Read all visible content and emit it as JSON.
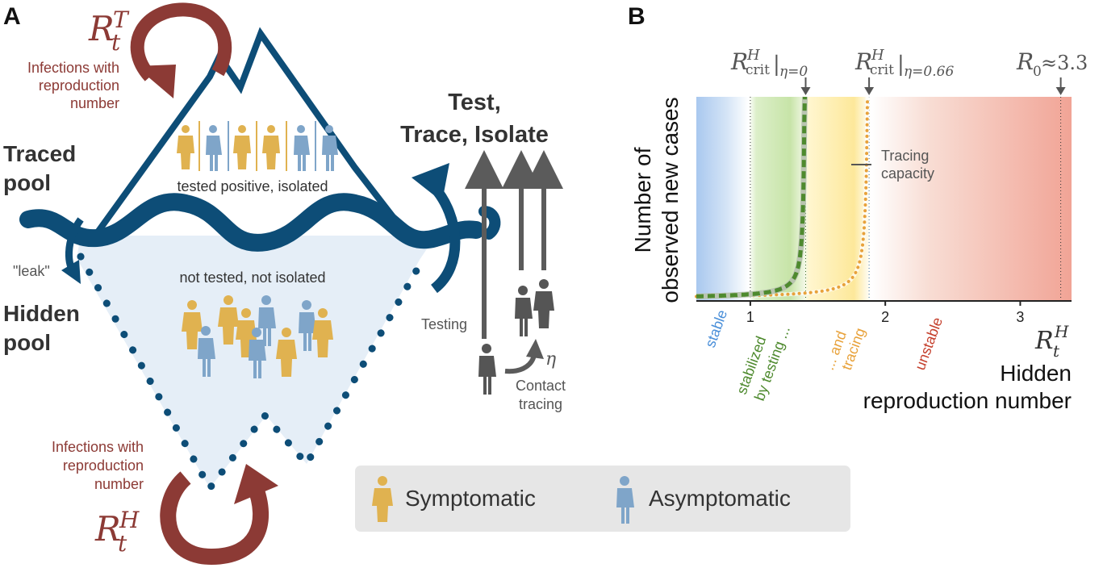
{
  "colors": {
    "navy": "#0d4d77",
    "brown": "#8c3a35",
    "grey": "#5b5b5b",
    "symptomatic": "#e0b250",
    "asymptomatic": "#7fa5c9",
    "pool_fill": "#e5eef7",
    "green": "#4e8a2e",
    "orange": "#e8a23b",
    "stable_blue": "#4a8fd9",
    "unstable_red": "#c5402d"
  },
  "panelA": {
    "label": "A",
    "traced_pool": [
      "Traced",
      "pool"
    ],
    "hidden_pool": [
      "Hidden",
      "pool"
    ],
    "rt_t": {
      "base": "R",
      "sub": "t",
      "sup": "T"
    },
    "rt_h": {
      "base": "R",
      "sub": "t",
      "sup": "H"
    },
    "infections_top": [
      "Infections with",
      "reproduction",
      "number"
    ],
    "infections_bottom": [
      "Infections with",
      "reproduction",
      "number"
    ],
    "tested_label": "tested positive, isolated",
    "not_tested_label": "not tested, not isolated",
    "leak": "\"leak\"",
    "tti": [
      "Test,",
      "Trace, Isolate"
    ],
    "testing": "Testing",
    "contact_tracing": [
      "Contact",
      "tracing"
    ],
    "eta": "η",
    "legend": {
      "symptomatic": "Symptomatic",
      "asymptomatic": "Asymptomatic"
    }
  },
  "panelB": {
    "label": "B",
    "ylabel": [
      "Number of",
      "observed new cases"
    ],
    "xlabel": [
      "Hidden",
      "reproduction number"
    ],
    "x_symbol": {
      "base": "R",
      "sub": "t",
      "sup": "H"
    },
    "crit_base": "R",
    "crit_sup": "H",
    "crit_sub": "crit",
    "crit0_cond": "η=0",
    "crit1_cond": "η=0.66",
    "r0_symbol": "R",
    "r0_sub": "0",
    "r0_rest": "≈3.3",
    "tracing_capacity": [
      "Tracing",
      "capacity"
    ],
    "regions": {
      "stable": "stable",
      "stabilized": [
        "stabilized",
        "by testing ..."
      ],
      "and_tracing": [
        "... and",
        "tracing"
      ],
      "unstable": "unstable"
    }
  },
  "chart_data": {
    "type": "line",
    "xlim": [
      0.6,
      3.38
    ],
    "ticks": [
      "1",
      "2",
      "3"
    ],
    "tick_values": [
      1,
      2,
      3
    ],
    "markers": {
      "crit_eta0": 1.41,
      "crit_eta066": 1.88,
      "r0": 3.3
    },
    "series": [
      {
        "name": "testing only (η=0)",
        "asymptote": 1.41,
        "style": "dashed-green"
      },
      {
        "name": "testing and tracing (η=0.66)",
        "asymptote": 1.88,
        "style": "dotted-orange"
      }
    ]
  }
}
